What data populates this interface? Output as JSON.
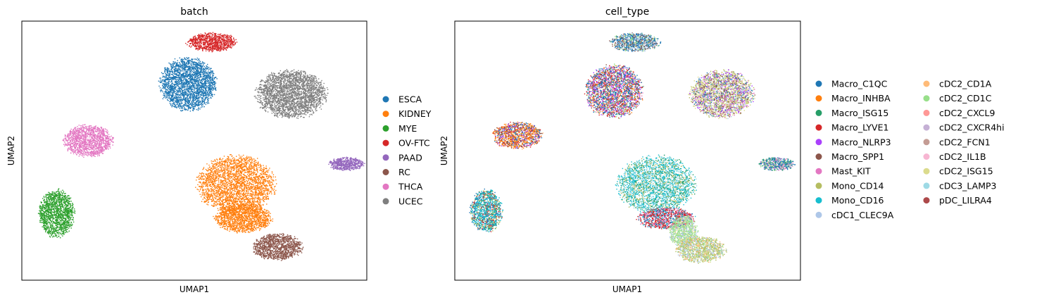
{
  "charts": [
    {
      "title": "batch",
      "xlabel": "UMAP1",
      "ylabel": "UMAP2",
      "legend": [
        {
          "label": "ESCA",
          "color": "#1f77b4"
        },
        {
          "label": "KIDNEY",
          "color": "#ff7f0e"
        },
        {
          "label": "MYE",
          "color": "#2ca02c"
        },
        {
          "label": "OV-FTC",
          "color": "#d62728"
        },
        {
          "label": "PAAD",
          "color": "#9467bd"
        },
        {
          "label": "RC",
          "color": "#8c564b"
        },
        {
          "label": "THCA",
          "color": "#e377c2"
        },
        {
          "label": "UCEC",
          "color": "#7f7f7f"
        }
      ]
    },
    {
      "title": "cell_type",
      "xlabel": "UMAP1",
      "ylabel": "UMAP2",
      "legend": [
        {
          "label": "Macro_C1QC",
          "color": "#1f77b4"
        },
        {
          "label": "Macro_INHBA",
          "color": "#ff7f0e"
        },
        {
          "label": "Macro_ISG15",
          "color": "#279e68"
        },
        {
          "label": "Macro_LYVE1",
          "color": "#d62728"
        },
        {
          "label": "Macro_NLRP3",
          "color": "#aa40fc"
        },
        {
          "label": "Macro_SPP1",
          "color": "#8c564b"
        },
        {
          "label": "Mast_KIT",
          "color": "#e377c2"
        },
        {
          "label": "Mono_CD14",
          "color": "#b5bd61"
        },
        {
          "label": "Mono_CD16",
          "color": "#17becf"
        },
        {
          "label": "cDC1_CLEC9A",
          "color": "#aec7e8"
        },
        {
          "label": "cDC2_CD1A",
          "color": "#ffbb78"
        },
        {
          "label": "cDC2_CD1C",
          "color": "#98df8a"
        },
        {
          "label": "cDC2_CXCL9",
          "color": "#ff9896"
        },
        {
          "label": "cDC2_CXCR4hi",
          "color": "#c5b0d5"
        },
        {
          "label": "cDC2_FCN1",
          "color": "#c49c94"
        },
        {
          "label": "cDC2_IL1B",
          "color": "#f7b6d2"
        },
        {
          "label": "cDC2_ISG15",
          "color": "#dbdb8d"
        },
        {
          "label": "cDC3_LAMP3",
          "color": "#9edae5"
        },
        {
          "label": "pDC_LILRA4",
          "color": "#ad494a"
        }
      ]
    }
  ],
  "chart_data": [
    {
      "type": "scatter",
      "title": "batch",
      "xlabel": "UMAP1",
      "ylabel": "UMAP2",
      "xticks": "none",
      "yticks": "none",
      "grid": false,
      "legend_position": "right",
      "series": [
        {
          "name": "ESCA",
          "color": "#1f77b4",
          "clusters": [
            [
              0.48,
              0.76,
              0.08,
              0.1
            ]
          ]
        },
        {
          "name": "KIDNEY",
          "color": "#ff7f0e",
          "clusters": [
            [
              0.62,
              0.37,
              0.11,
              0.11
            ],
            [
              0.64,
              0.24,
              0.08,
              0.055
            ]
          ]
        },
        {
          "name": "MYE",
          "color": "#2ca02c",
          "clusters": [
            [
              0.1,
              0.26,
              0.05,
              0.09
            ]
          ]
        },
        {
          "name": "OV-FTC",
          "color": "#d62728",
          "clusters": [
            [
              0.55,
              0.92,
              0.07,
              0.035
            ]
          ]
        },
        {
          "name": "PAAD",
          "color": "#9467bd",
          "clusters": [
            [
              0.94,
              0.45,
              0.05,
              0.025
            ]
          ]
        },
        {
          "name": "RC",
          "color": "#8c564b",
          "clusters": [
            [
              0.74,
              0.13,
              0.07,
              0.05
            ]
          ]
        },
        {
          "name": "THCA",
          "color": "#e377c2",
          "clusters": [
            [
              0.19,
              0.54,
              0.07,
              0.06
            ]
          ]
        },
        {
          "name": "UCEC",
          "color": "#7f7f7f",
          "clusters": [
            [
              0.78,
              0.72,
              0.1,
              0.09
            ]
          ]
        }
      ]
    },
    {
      "type": "scatter",
      "title": "cell_type",
      "xlabel": "UMAP1",
      "ylabel": "UMAP2",
      "xticks": "none",
      "yticks": "none",
      "grid": false,
      "legend_position": "right",
      "islands": [
        {
          "center": [
            0.46,
            0.73
          ],
          "spread": [
            0.08,
            0.1
          ],
          "mix": [
            0,
            3,
            4,
            6,
            1,
            5,
            11
          ]
        },
        {
          "center": [
            0.52,
            0.92
          ],
          "spread": [
            0.07,
            0.035
          ],
          "mix": [
            0,
            5,
            9,
            11
          ]
        },
        {
          "center": [
            0.77,
            0.72
          ],
          "spread": [
            0.09,
            0.09
          ],
          "mix": [
            16,
            7,
            5,
            6,
            4,
            0,
            9
          ]
        },
        {
          "center": [
            0.18,
            0.56
          ],
          "spread": [
            0.07,
            0.05
          ],
          "mix": [
            1,
            5,
            0,
            4,
            3,
            10
          ]
        },
        {
          "center": [
            0.09,
            0.27
          ],
          "spread": [
            0.045,
            0.08
          ],
          "mix": [
            8,
            0,
            7,
            3,
            2
          ]
        },
        {
          "center": [
            0.93,
            0.45
          ],
          "spread": [
            0.05,
            0.025
          ],
          "mix": [
            0,
            11,
            6,
            13,
            2
          ]
        },
        {
          "center": [
            0.58,
            0.37
          ],
          "spread": [
            0.11,
            0.11
          ],
          "mix": [
            8,
            17,
            2,
            7
          ]
        },
        {
          "center": [
            0.61,
            0.24
          ],
          "spread": [
            0.08,
            0.04
          ],
          "mix": [
            3,
            6,
            0,
            8
          ]
        },
        {
          "center": [
            0.66,
            0.19
          ],
          "spread": [
            0.04,
            0.06
          ],
          "mix": [
            11,
            9,
            16
          ]
        },
        {
          "center": [
            0.71,
            0.12
          ],
          "spread": [
            0.07,
            0.05
          ],
          "mix": [
            7,
            9,
            16,
            11,
            10
          ]
        }
      ]
    }
  ]
}
